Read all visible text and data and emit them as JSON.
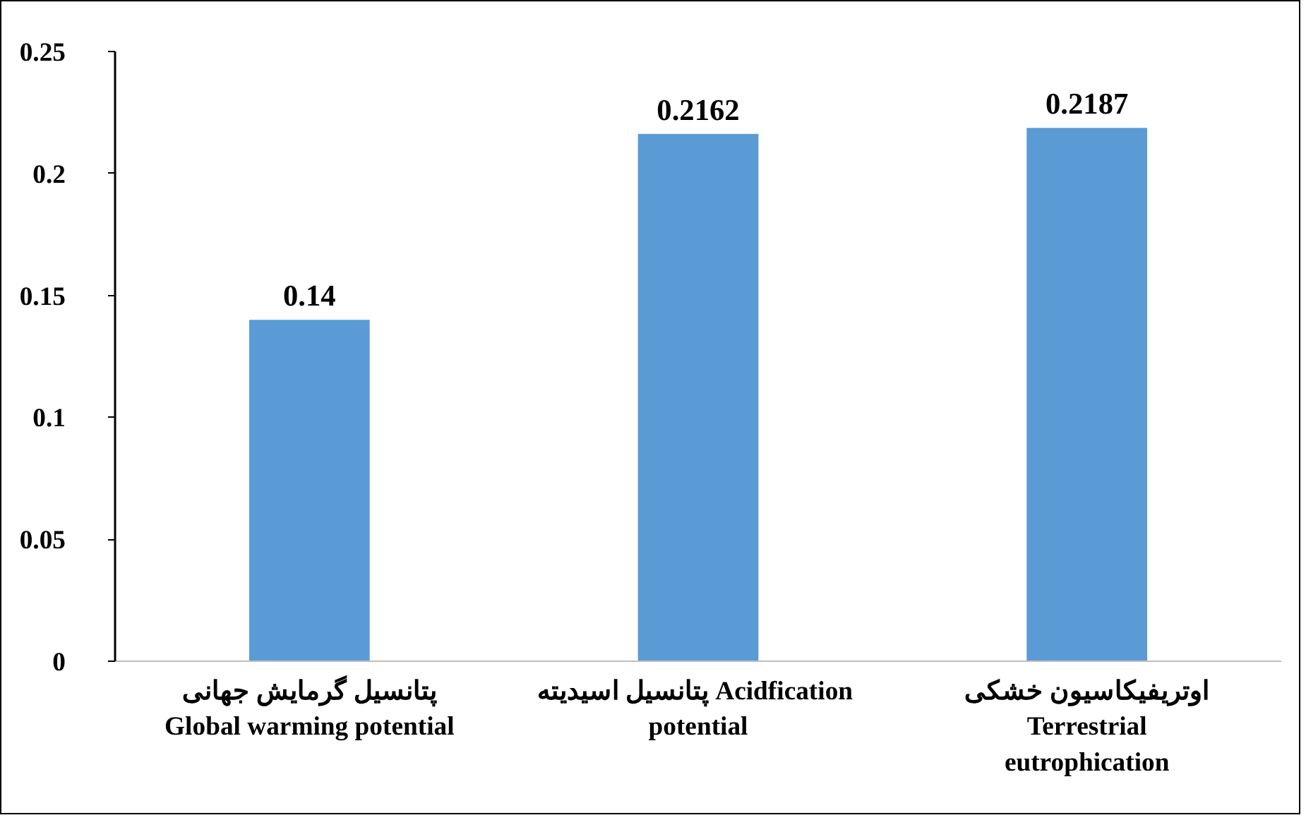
{
  "chart_data": {
    "type": "bar",
    "categories": [
      "پتانسیل گرمایش جهانی\nGlobal warming potential",
      "پتانسیل اسیدیته  Acidfication\npotential",
      "اوتریفیکاسیون خشکی\nTerrestrial\neutrophication"
    ],
    "values": [
      0.14,
      0.2162,
      0.2187
    ],
    "color": "#5b9bd5",
    "ylim": [
      0,
      0.25
    ],
    "yticks": [
      0,
      0.05,
      0.1,
      0.15,
      0.2,
      0.25
    ],
    "grid": false,
    "data_labels": true
  }
}
